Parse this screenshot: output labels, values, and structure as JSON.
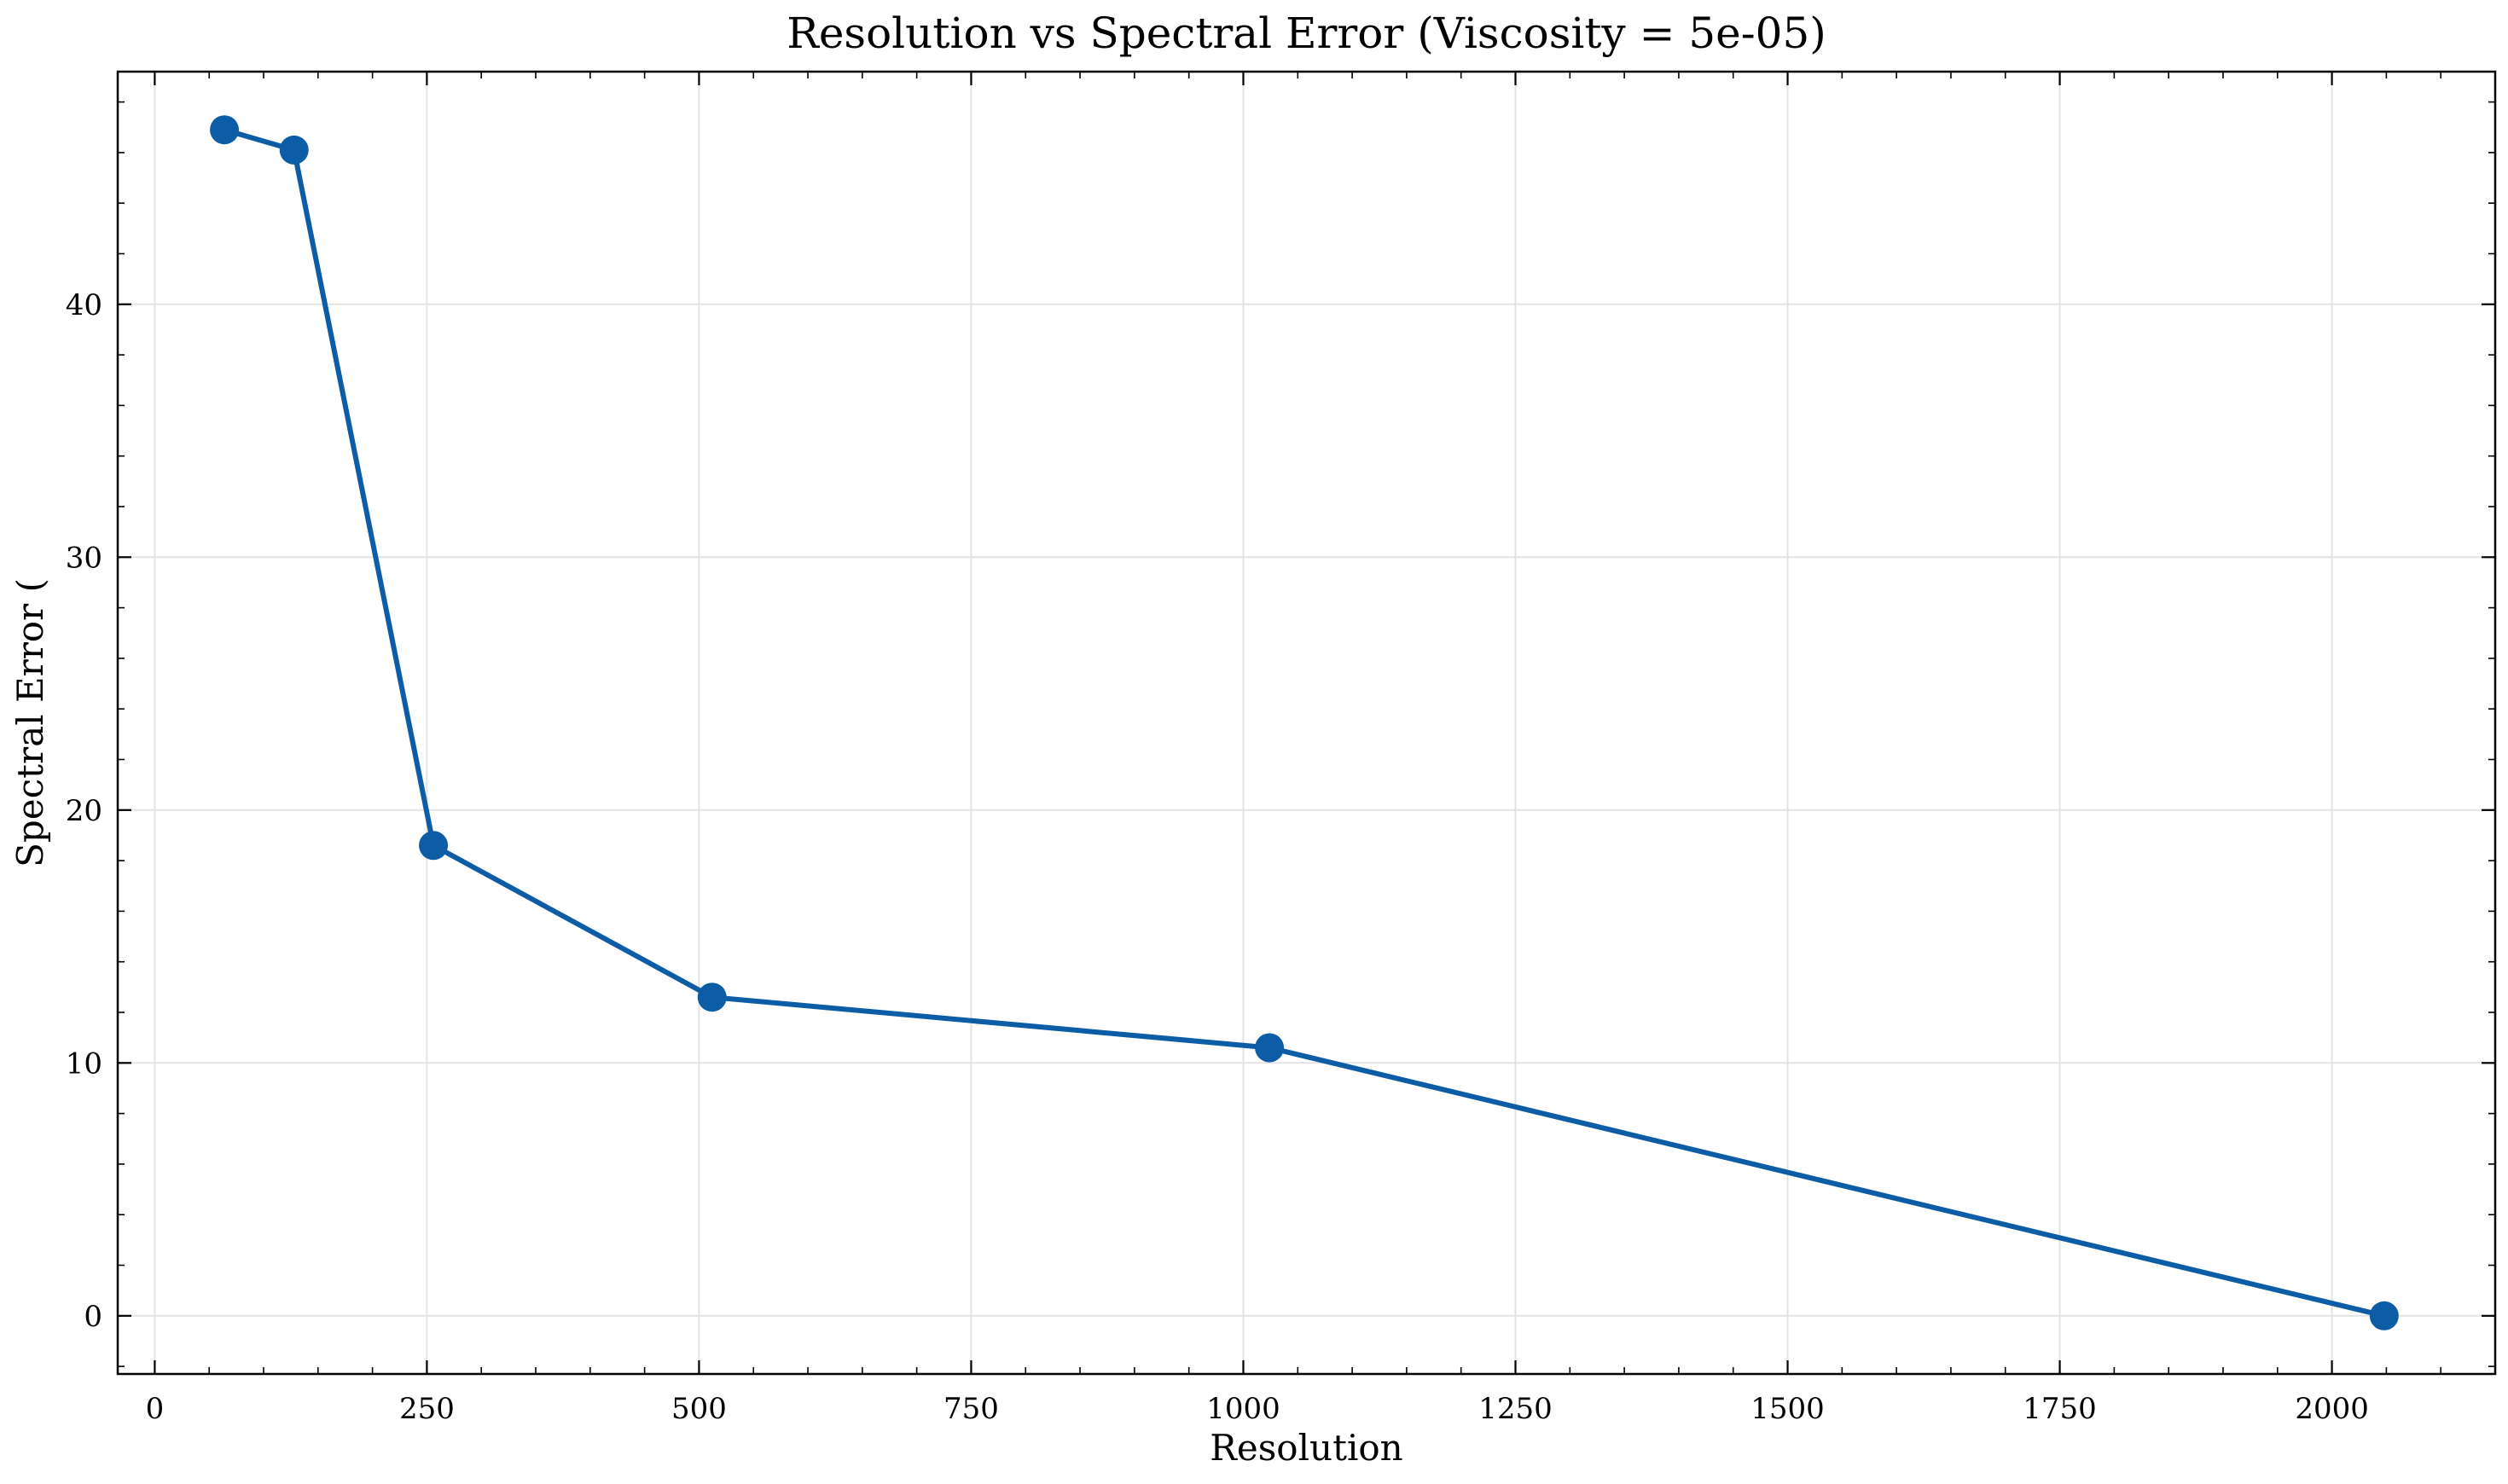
{
  "chart_data": {
    "type": "line",
    "title": "Resolution vs Spectral Error (Viscosity = 5e-05)",
    "xlabel": "Resolution",
    "ylabel": "Spectral Error (",
    "x": [
      64,
      128,
      256,
      512,
      1024,
      2048
    ],
    "series": [
      {
        "values": [
          46.9,
          46.1,
          18.6,
          12.6,
          10.6,
          0.0
        ],
        "color": "#0C5DA5"
      }
    ],
    "xlim": [
      -34,
      2150
    ],
    "ylim": [
      -2.3,
      49.2
    ],
    "xticks": [
      0,
      250,
      500,
      750,
      1000,
      1250,
      1500,
      1750,
      2000
    ],
    "xtick_labels": [
      "0",
      "250",
      "500",
      "750",
      "1000",
      "1250",
      "1500",
      "1750",
      "2000"
    ],
    "yticks": [
      0,
      10,
      20,
      30,
      40
    ],
    "ytick_labels": [
      "0",
      "10",
      "20",
      "30",
      "40"
    ],
    "grid": true,
    "marker": "circle"
  }
}
